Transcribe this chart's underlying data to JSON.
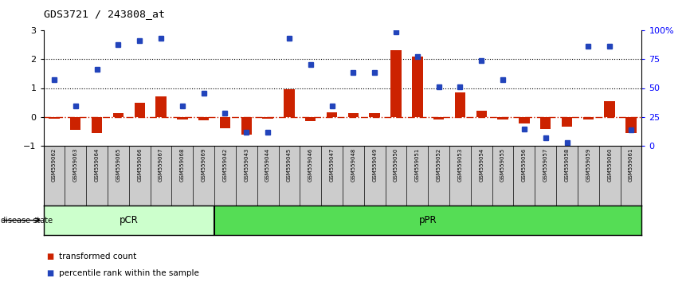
{
  "title": "GDS3721 / 243808_at",
  "samples": [
    "GSM559062",
    "GSM559063",
    "GSM559064",
    "GSM559065",
    "GSM559066",
    "GSM559067",
    "GSM559068",
    "GSM559069",
    "GSM559042",
    "GSM559043",
    "GSM559044",
    "GSM559045",
    "GSM559046",
    "GSM559047",
    "GSM559048",
    "GSM559049",
    "GSM559050",
    "GSM559051",
    "GSM559052",
    "GSM559053",
    "GSM559054",
    "GSM559055",
    "GSM559056",
    "GSM559057",
    "GSM559058",
    "GSM559059",
    "GSM559060",
    "GSM559061"
  ],
  "transformed_count": [
    -0.05,
    -0.45,
    -0.55,
    0.12,
    0.48,
    0.72,
    -0.08,
    -0.12,
    -0.38,
    -0.62,
    -0.07,
    0.95,
    -0.15,
    0.15,
    0.12,
    0.12,
    2.3,
    2.1,
    -0.08,
    0.85,
    0.22,
    -0.08,
    -0.22,
    -0.42,
    -0.35,
    -0.08,
    0.55,
    -0.55
  ],
  "percentile_rank": [
    1.3,
    0.38,
    1.65,
    2.5,
    2.65,
    2.72,
    0.38,
    0.82,
    0.12,
    -0.52,
    -0.52,
    2.72,
    1.82,
    0.38,
    1.55,
    1.55,
    2.95,
    2.1,
    1.05,
    1.05,
    1.95,
    1.3,
    -0.42,
    -0.72,
    -0.88,
    2.45,
    2.45,
    -0.45
  ],
  "pCR_count": 8,
  "pCR_label": "pCR",
  "pPR_label": "pPR",
  "bar_color": "#cc2200",
  "dot_color": "#2244bb",
  "background_color": "#ffffff",
  "pCR_bg": "#ccffcc",
  "pPR_bg": "#55dd55",
  "label_area_bg": "#cccccc",
  "ylim": [
    -1.0,
    3.0
  ],
  "yticks": [
    -1,
    0,
    1,
    2,
    3
  ],
  "y2ticks": [
    0,
    25,
    50,
    75,
    100
  ],
  "y2ticklabels": [
    "0",
    "25",
    "50",
    "75",
    "100%"
  ],
  "hline_y": [
    1.0,
    2.0
  ],
  "zero_line_color": "#cc2200",
  "dotted_line_color": "black",
  "legend_bar_label": "transformed count",
  "legend_dot_label": "percentile rank within the sample"
}
